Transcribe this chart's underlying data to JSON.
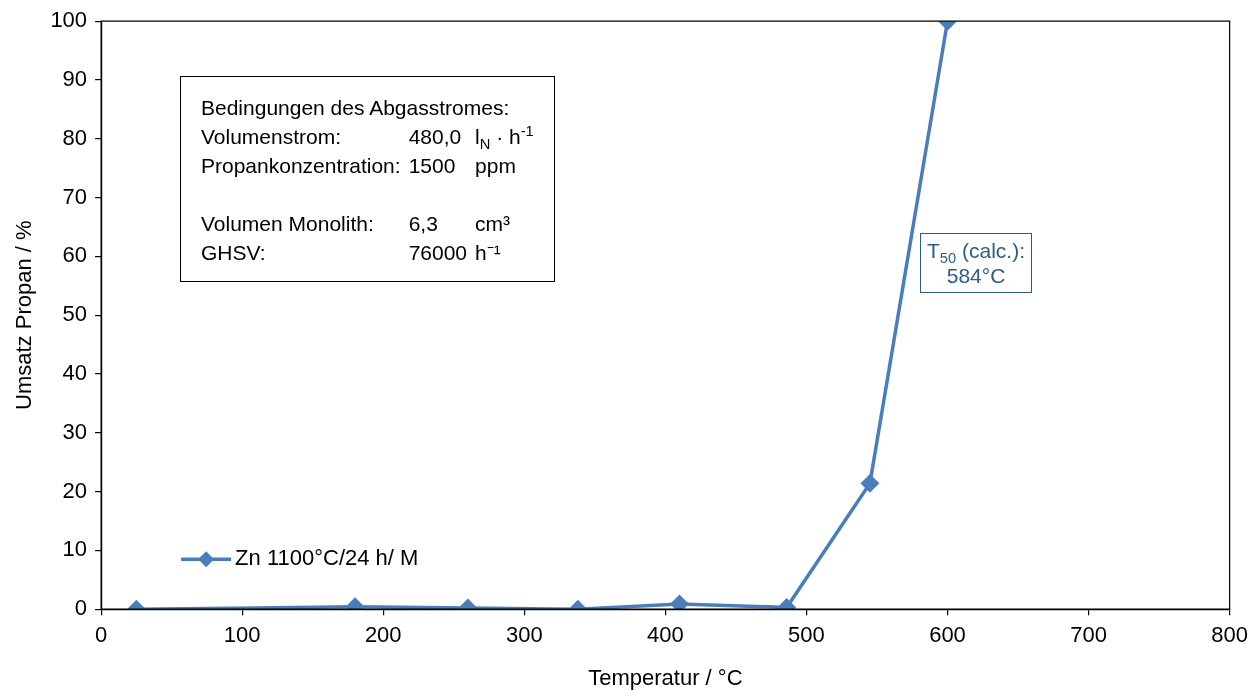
{
  "chart_data": {
    "type": "line",
    "xlabel": "Temperatur / °C",
    "ylabel": "Umsatz Propan / %",
    "x": [
      25,
      180,
      260,
      338,
      410,
      486,
      545,
      600
    ],
    "series": [
      {
        "name": "Zn 1100°C/24 h/ M",
        "color": "#4a7ebb",
        "values": [
          0,
          0.4,
          0.2,
          0,
          0.9,
          0.3,
          21.4,
          100
        ]
      }
    ],
    "xlim": [
      0,
      800
    ],
    "xticks": [
      0,
      100,
      200,
      300,
      400,
      500,
      600,
      700,
      800
    ],
    "ylim": [
      0,
      100
    ],
    "yticks": [
      0,
      10,
      20,
      30,
      40,
      50,
      60,
      70,
      80,
      90,
      100
    ],
    "grid": false,
    "legend": "bottom left",
    "marker": "diamond",
    "line_style": "solid",
    "annotations": [
      "Bedingungen des Abgasstromes:",
      "Volumenstrom:\t480,0\tl$_{N}$ · h$^{-1}$",
      "Propankonzentration:\t1500\tppm",
      "Volumen Monolith:\t6,3\tcm³",
      "GHSV:\t76000\th⁻¹",
      "T$_{50}$ (calc.):\n584°C"
    ]
  }
}
